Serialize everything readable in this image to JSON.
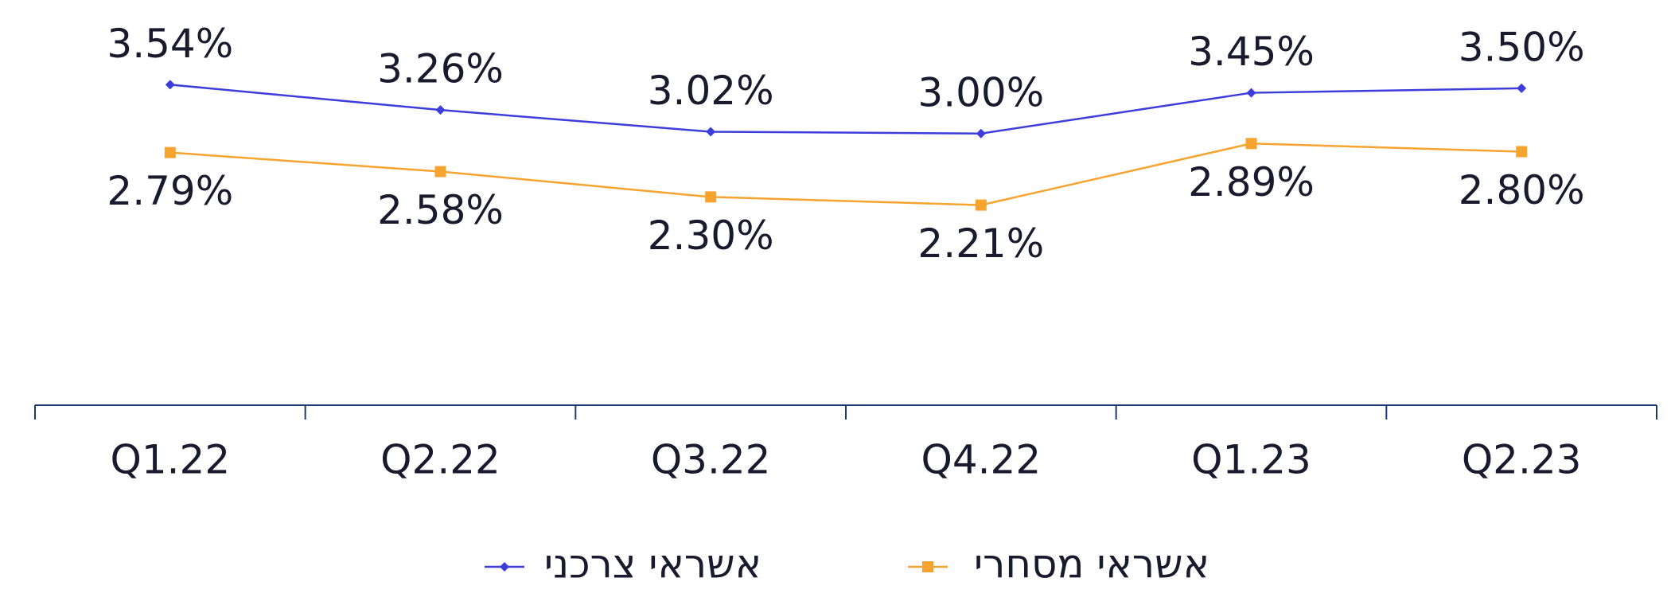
{
  "chart_data": {
    "type": "line",
    "categories": [
      "Q1.22",
      "Q2.22",
      "Q3.22",
      "Q4.22",
      "Q1.23",
      "Q2.23"
    ],
    "series": [
      {
        "name": "אשראי צרכני",
        "color": "#3d3ddb",
        "marker": "diamond",
        "values": [
          3.54,
          3.26,
          3.02,
          3.0,
          3.45,
          3.5
        ],
        "value_labels": [
          "3.54%",
          "3.26%",
          "3.02%",
          "3.00%",
          "3.45%",
          "3.50%"
        ]
      },
      {
        "name": "אשראי מסחרי",
        "color": "#f7a330",
        "marker": "square",
        "values": [
          2.79,
          2.58,
          2.3,
          2.21,
          2.89,
          2.8
        ],
        "value_labels": [
          "2.79%",
          "2.58%",
          "2.30%",
          "2.21%",
          "2.89%",
          "2.80%"
        ]
      }
    ],
    "ylim": [
      0,
      4
    ]
  }
}
